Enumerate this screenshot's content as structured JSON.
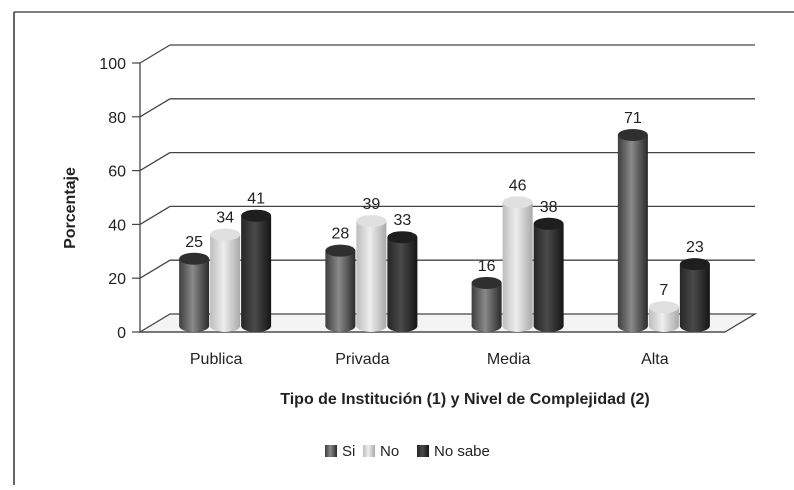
{
  "chart_data": {
    "type": "bar",
    "categories": [
      "Publica",
      "Privada",
      "Media",
      "Alta"
    ],
    "series": [
      {
        "name": "Si",
        "values": [
          25,
          28,
          16,
          71
        ]
      },
      {
        "name": "No",
        "values": [
          34,
          39,
          46,
          7
        ]
      },
      {
        "name": "No sabe",
        "values": [
          41,
          33,
          38,
          23
        ]
      }
    ],
    "xlabel": "Tipo de Institución (1) y Nivel de Complejidad (2)",
    "ylabel": "Porcentaje",
    "ylim": [
      0,
      100
    ],
    "yticks": [
      "0",
      "20",
      "40",
      "60",
      "80",
      "100"
    ],
    "grid": true,
    "legend": "bottom",
    "three_d": true
  },
  "colors": {
    "si": "#5f5f5f",
    "no": "#cfcfcf",
    "no_sabe": "#2f2f2f",
    "grid": "#404040"
  }
}
